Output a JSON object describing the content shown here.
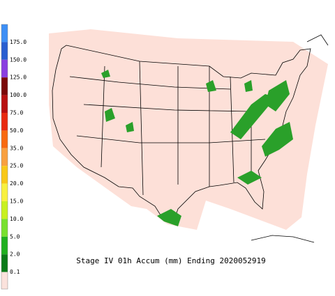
{
  "legend": {
    "entries": [
      {
        "label": "175.0",
        "color": "#3d8ff5"
      },
      {
        "label": "150.0",
        "color": "#2a5fd0"
      },
      {
        "label": "125.0",
        "color": "#8a3ee0"
      },
      {
        "label": "100.0",
        "color": "#7a0808"
      },
      {
        "label": "75.0",
        "color": "#b81010"
      },
      {
        "label": "50.0",
        "color": "#e82a10"
      },
      {
        "label": "35.0",
        "color": "#f86a10"
      },
      {
        "label": "25.0",
        "color": "#f8a040"
      },
      {
        "label": "20.0",
        "color": "#f8c818"
      },
      {
        "label": "15.0",
        "color": "#f8f040"
      },
      {
        "label": "10.0",
        "color": "#c8f020"
      },
      {
        "label": "5.0",
        "color": "#78e030"
      },
      {
        "label": "2.0",
        "color": "#20b020"
      },
      {
        "label": "0.1",
        "color": "#0a7a18"
      }
    ],
    "floor_color": "#fbe2dc"
  },
  "caption": "Stage IV 01h Accum (mm) Ending 2020052919"
}
